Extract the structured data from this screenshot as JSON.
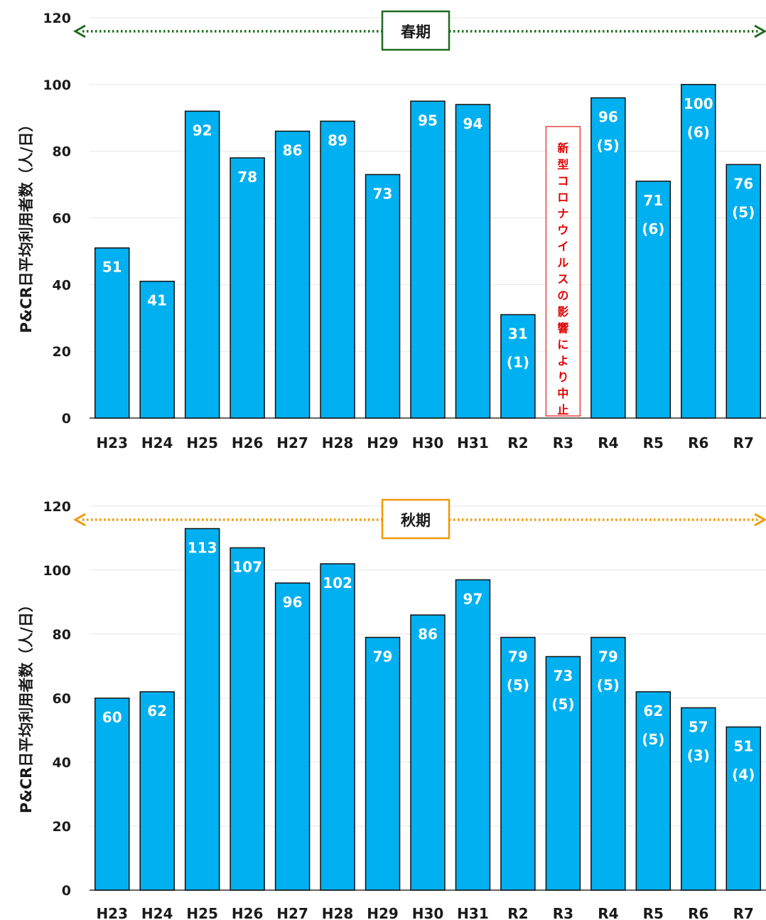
{
  "chart_data": [
    {
      "type": "bar",
      "season": "春期",
      "ylabel": "P&CR日平均利用者数（人/日）",
      "ylim": [
        0,
        120
      ],
      "yticks": [
        "0",
        "20",
        "40",
        "60",
        "80",
        "100",
        "120"
      ],
      "grid": true,
      "categories": [
        "H23",
        "H24",
        "H25",
        "H26",
        "H27",
        "H28",
        "H29",
        "H30",
        "H31",
        "R2",
        "R3",
        "R4",
        "R5",
        "R6",
        "R7"
      ],
      "values": [
        51,
        41,
        92,
        78,
        86,
        89,
        73,
        95,
        94,
        31,
        null,
        96,
        71,
        100,
        76
      ],
      "value_labels": [
        "51",
        "41",
        "92",
        "78",
        "86",
        "89",
        "73",
        "95",
        "94",
        "31",
        "",
        "96",
        "71",
        "100",
        "76"
      ],
      "sub_labels": [
        "",
        "",
        "",
        "",
        "",
        "",
        "",
        "",
        "",
        "(1)",
        "",
        "(5)",
        "(6)",
        "(6)",
        "(5)"
      ],
      "note": {
        "category": "R3",
        "text": "新型コロナウイルスの影響により中止",
        "color": "#e00000"
      },
      "colors": {
        "bar": "#00b0f0",
        "season_box": "#1e6b1e",
        "arrow": "#1e6b1e"
      }
    },
    {
      "type": "bar",
      "season": "秋期",
      "ylabel": "P&CR日平均利用者数（人/日）",
      "ylim": [
        0,
        120
      ],
      "yticks": [
        "0",
        "20",
        "40",
        "60",
        "80",
        "100",
        "120"
      ],
      "grid": true,
      "categories": [
        "H23",
        "H24",
        "H25",
        "H26",
        "H27",
        "H28",
        "H29",
        "H30",
        "H31",
        "R2",
        "R3",
        "R4",
        "R5",
        "R6",
        "R7"
      ],
      "values": [
        60,
        62,
        113,
        107,
        96,
        102,
        79,
        86,
        97,
        79,
        73,
        79,
        62,
        57,
        51
      ],
      "value_labels": [
        "60",
        "62",
        "113",
        "107",
        "96",
        "102",
        "79",
        "86",
        "97",
        "79",
        "73",
        "79",
        "62",
        "57",
        "51"
      ],
      "sub_labels": [
        "",
        "",
        "",
        "",
        "",
        "",
        "",
        "",
        "",
        "(5)",
        "(5)",
        "(5)",
        "(5)",
        "(3)",
        "(4)"
      ],
      "colors": {
        "bar": "#00b0f0",
        "season_box": "#f39800",
        "arrow": "#f39800"
      }
    }
  ]
}
